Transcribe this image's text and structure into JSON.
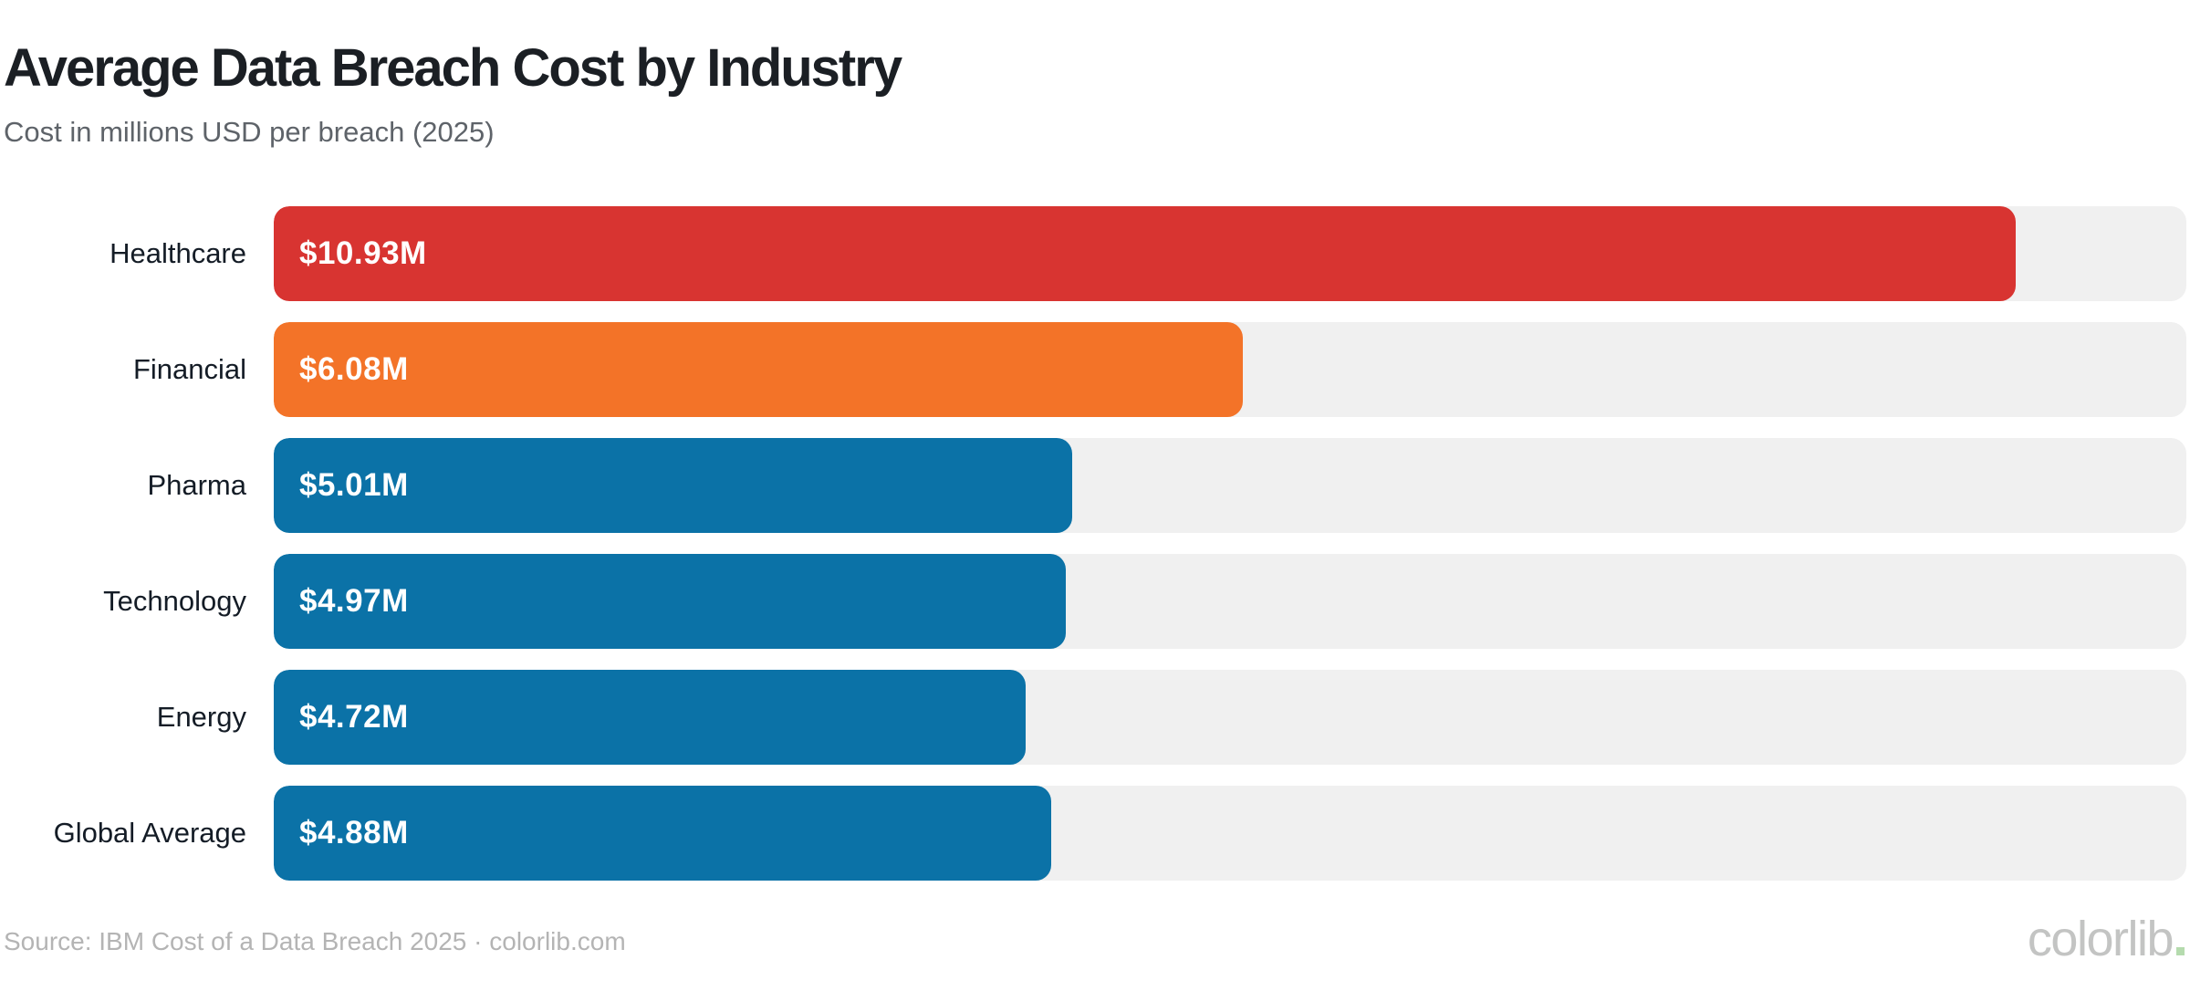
{
  "header": {
    "title": "Average Data Breach Cost by Industry",
    "subtitle": "Cost in millions USD per breach (2025)"
  },
  "chart_data": {
    "type": "bar",
    "orientation": "horizontal",
    "title": "Average Data Breach Cost by Industry",
    "subtitle": "Cost in millions USD per breach (2025)",
    "categories": [
      "Healthcare",
      "Financial",
      "Pharma",
      "Technology",
      "Energy",
      "Global Average"
    ],
    "values": [
      10.93,
      6.08,
      5.01,
      4.97,
      4.72,
      4.88
    ],
    "value_labels": [
      "$10.93M",
      "$6.08M",
      "$5.01M",
      "$4.97M",
      "$4.72M",
      "$4.88M"
    ],
    "unit": "millions USD per breach",
    "xlim": [
      0,
      12
    ],
    "grid": false,
    "legend": false,
    "bar_colors": [
      "#d83431",
      "#f37328",
      "#0b72a7",
      "#0b72a7",
      "#0b72a7",
      "#0b72a7"
    ],
    "track_color": "#f0f0f0"
  },
  "footer": {
    "source": "Source: IBM Cost of a Data Breach 2025 · colorlib.com",
    "logo_text": "colorlib",
    "logo_dot_color": "#b5dbae"
  },
  "colors": {
    "background": "#ffffff",
    "title": "#1b1f24",
    "subtitle": "#5e6369",
    "category_label": "#141c26",
    "value_label": "#ffffff",
    "source_text": "#b4b4b4",
    "logo_text": "#c3c4c3"
  }
}
